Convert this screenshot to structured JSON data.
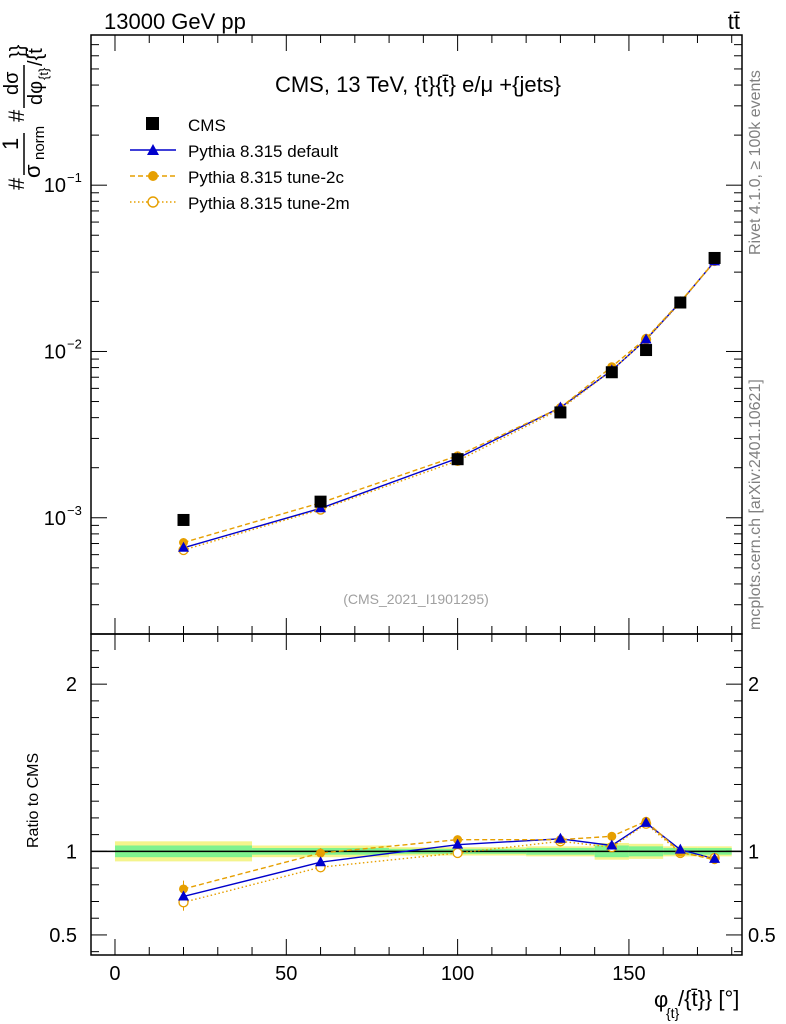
{
  "header": {
    "left": "13000 GeV pp",
    "right": "tt̄"
  },
  "side": {
    "rivet": "Rivet 4.1.0, ≥ 100k events",
    "mcplots": "mcplots.cern.ch [arXiv:2401.10621]"
  },
  "watermark": "(CMS_2021_I1901295)",
  "y_label": {
    "hash1": "#",
    "one": "1",
    "sigma": "σ",
    "norm": "norm",
    "hash2": "#",
    "dsigma": "dσ",
    "dphi": "dφ",
    "sub": "{t}",
    "slash": "/{t̄",
    "close": "}}"
  },
  "x_label": {
    "phi": "φ",
    "sub": "{t}",
    "rest": "/{t̄}} [°]"
  },
  "ratio_ylabel": "Ratio to CMS",
  "legend": [
    {
      "label": "CMS",
      "color": "#000000",
      "marker": "square",
      "style": "none"
    },
    {
      "label": "Pythia 8.315 default",
      "color": "#0000cc",
      "marker": "triangle",
      "style": "solid"
    },
    {
      "label": "Pythia 8.315 tune-2c",
      "color": "#e69f00",
      "marker": "circle",
      "style": "dashed"
    },
    {
      "label": "Pythia 8.315 tune-2m",
      "color": "#e69f00",
      "marker": "open-circle",
      "style": "dotted"
    }
  ],
  "chart_data": {
    "type": "line",
    "title": "CMS, 13 TeV, {t}{t̄} e/μ +{jets}",
    "xlabel": "φ_{t}/{t̄}} [°]",
    "ylabel": "#1/σ_norm #dσ/dφ_{t}/{t̄}}",
    "xlim": [
      -7,
      183
    ],
    "ylim_log": [
      0.0002,
      0.8
    ],
    "ratio_ylim": [
      0.38,
      2.3
    ],
    "x_ticks": [
      0,
      50,
      100,
      150
    ],
    "x_tick_labels": [
      "0",
      "50",
      "100",
      "150"
    ],
    "y_ticks": [
      0.001,
      0.01,
      0.1
    ],
    "y_tick_labels": [
      "10",
      "10",
      "10"
    ],
    "y_tick_exps": [
      "−3",
      "−2",
      "−1"
    ],
    "ratio_ticks": [
      0.5,
      1,
      2
    ],
    "ratio_tick_labels": [
      "0.5",
      "1",
      "2"
    ],
    "x": [
      20,
      60,
      100,
      130,
      145,
      155,
      165,
      175
    ],
    "x_edges": [
      0,
      40,
      80,
      120,
      140,
      150,
      160,
      170,
      180
    ],
    "series": [
      {
        "name": "CMS",
        "values": [
          0.00097,
          0.00125,
          0.00225,
          0.0043,
          0.0075,
          0.0102,
          0.0197,
          0.0365
        ]
      },
      {
        "name": "Pythia 8.315 default",
        "values": [
          0.00066,
          0.00114,
          0.00228,
          0.0046,
          0.0077,
          0.0118,
          0.0198,
          0.0348
        ]
      },
      {
        "name": "Pythia 8.315 tune-2c",
        "values": [
          0.00071,
          0.00123,
          0.00236,
          0.0046,
          0.0081,
          0.012,
          0.0199,
          0.0347
        ]
      },
      {
        "name": "Pythia 8.315 tune-2m",
        "values": [
          0.00064,
          0.00112,
          0.0022,
          0.0045,
          0.0077,
          0.0118,
          0.0196,
          0.0352
        ]
      }
    ],
    "ratios": [
      {
        "name": "Pythia 8.315 default",
        "values": [
          0.73,
          0.935,
          1.04,
          1.075,
          1.035,
          1.17,
          1.01,
          0.955
        ]
      },
      {
        "name": "Pythia 8.315 tune-2c",
        "values": [
          0.775,
          0.99,
          1.07,
          1.07,
          1.09,
          1.18,
          0.995,
          0.95
        ]
      },
      {
        "name": "Pythia 8.315 tune-2m",
        "values": [
          0.695,
          0.905,
          0.99,
          1.06,
          1.025,
          1.165,
          0.99,
          0.96
        ]
      }
    ],
    "ratio_err": [
      0.05,
      0.03,
      0.02,
      0.02,
      0.02,
      0.02,
      0.02,
      0.015
    ],
    "band_inner": [
      0.035,
      0.02,
      0.015,
      0.02,
      0.035,
      0.03,
      0.02,
      0.02
    ],
    "band_outer": [
      0.06,
      0.035,
      0.025,
      0.03,
      0.05,
      0.045,
      0.03,
      0.03
    ]
  }
}
